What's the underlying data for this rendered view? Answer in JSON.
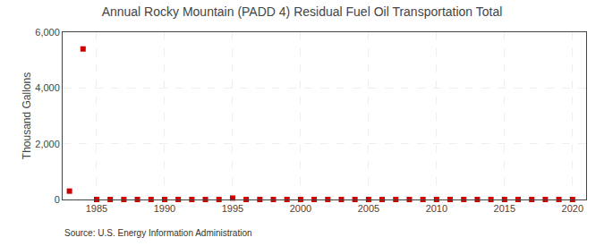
{
  "chart_data": {
    "type": "scatter",
    "title": "Annual Rocky Mountain (PADD 4) Residual Fuel Oil Transportation Total",
    "ylabel": "Thousand Gallons",
    "annotations": [
      "Source: U.S. Energy Information Administration"
    ],
    "x": [
      1983,
      1984,
      1985,
      1986,
      1987,
      1988,
      1989,
      1990,
      1991,
      1992,
      1993,
      1994,
      1995,
      1996,
      1997,
      1998,
      1999,
      2000,
      2001,
      2002,
      2003,
      2004,
      2005,
      2006,
      2007,
      2008,
      2009,
      2010,
      2011,
      2012,
      2013,
      2014,
      2015,
      2016,
      2017,
      2018,
      2019,
      2020
    ],
    "values": [
      300,
      5400,
      0,
      0,
      0,
      0,
      0,
      0,
      0,
      0,
      0,
      0,
      50,
      0,
      0,
      0,
      0,
      0,
      0,
      0,
      0,
      0,
      0,
      0,
      0,
      0,
      0,
      0,
      0,
      0,
      0,
      0,
      0,
      0,
      0,
      0,
      0,
      0
    ],
    "color": "#cc0000",
    "marker": "square",
    "xlim": [
      1982.5,
      2021
    ],
    "xticks": [
      1985,
      1990,
      1995,
      2000,
      2005,
      2010,
      2015,
      2020
    ],
    "ylim": [
      0,
      6000
    ],
    "yticks": [
      0,
      {
        "value": 2000,
        "label": "2,000"
      },
      {
        "value": 4000,
        "label": "4,000"
      },
      {
        "value": 6000,
        "label": "6,000"
      }
    ],
    "grid": true
  }
}
